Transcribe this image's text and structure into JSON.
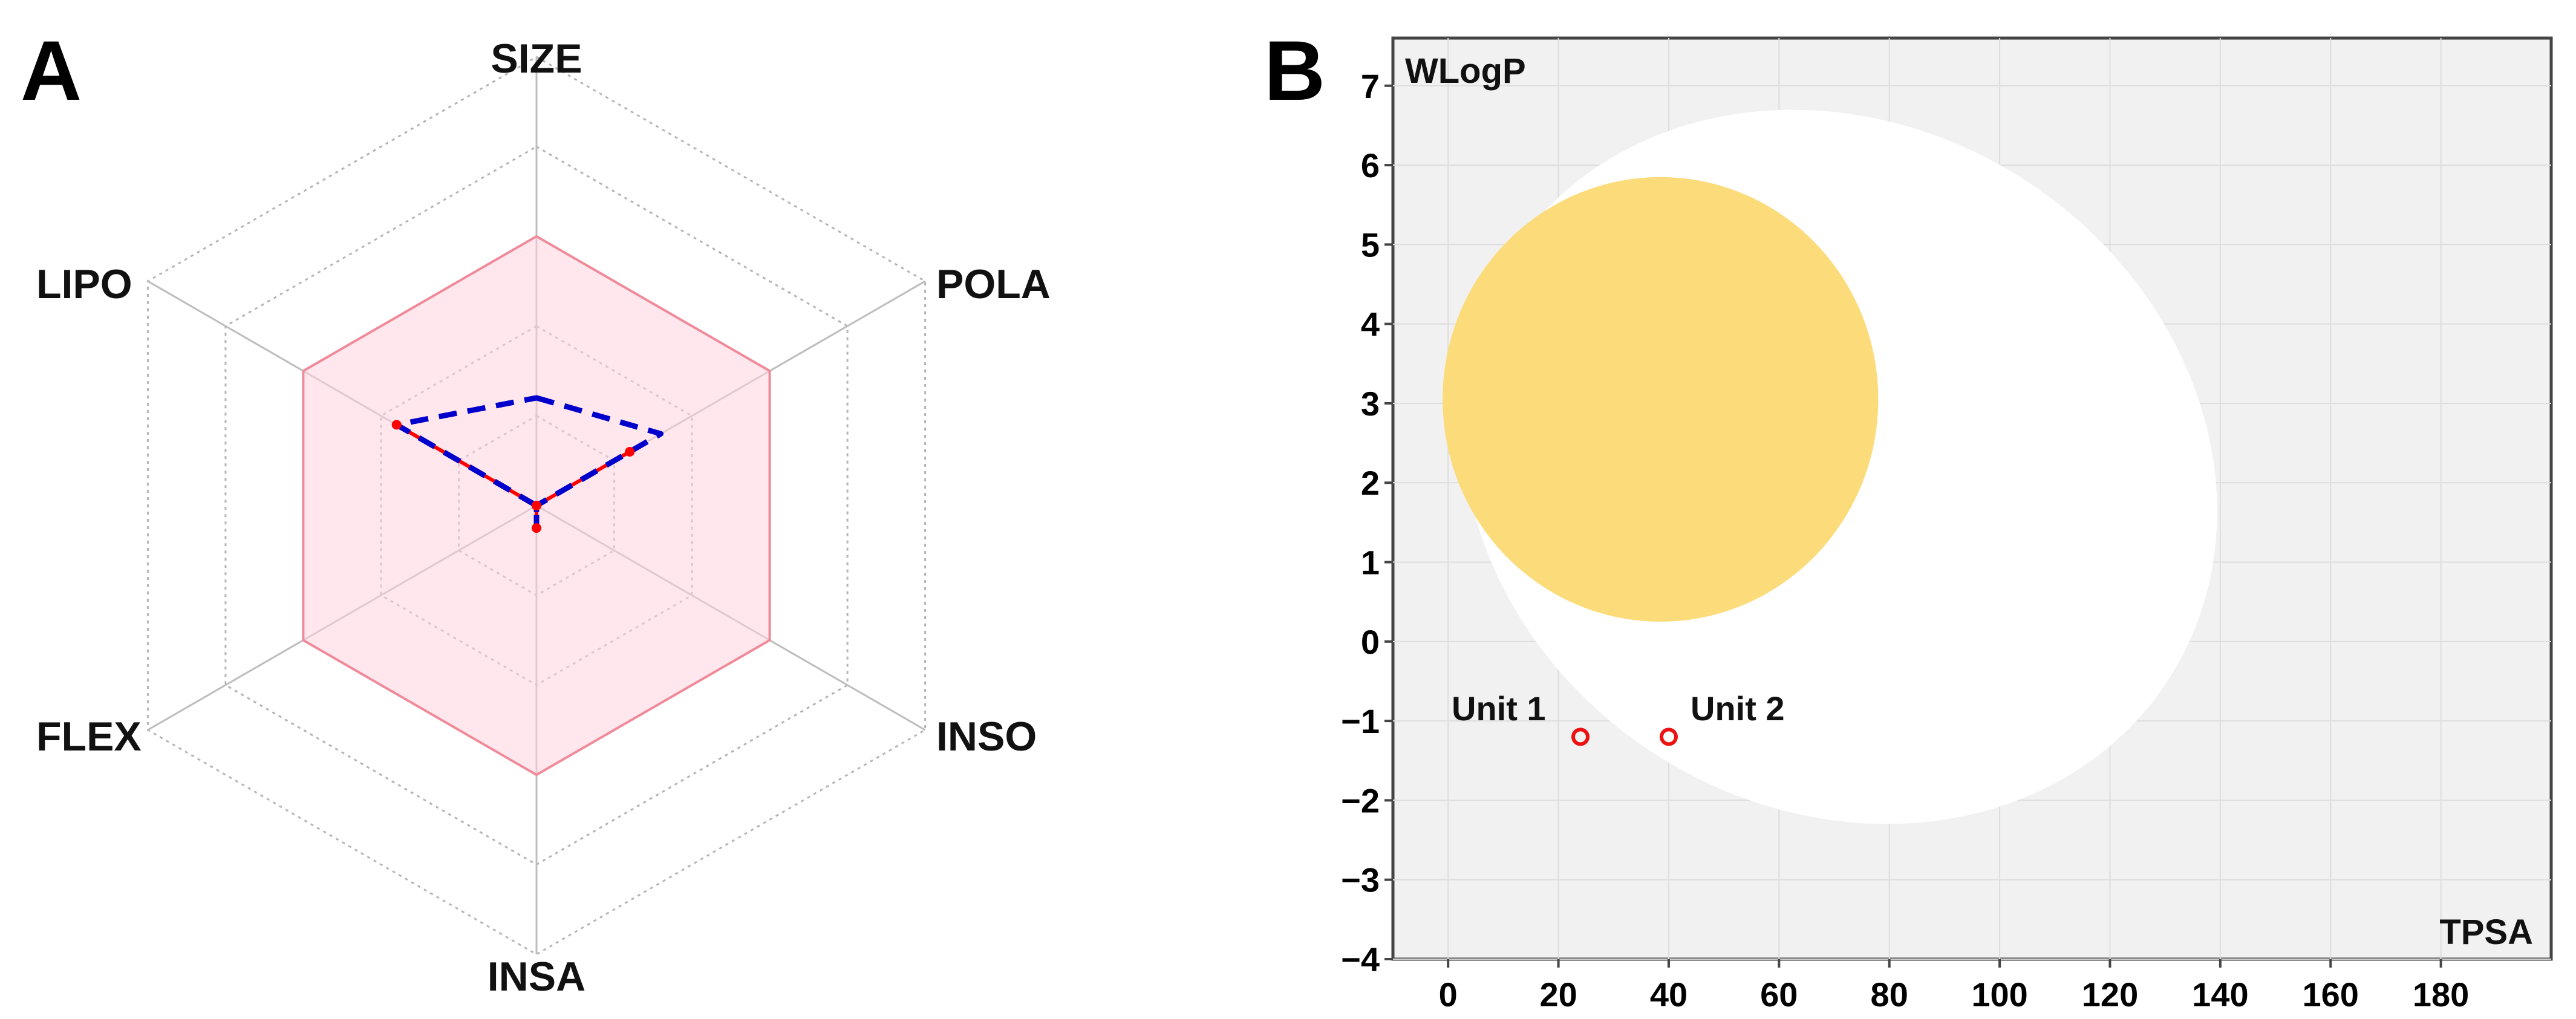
{
  "chart_data": [
    {
      "panel": "A",
      "type": "radar",
      "axes": [
        "SIZE",
        "POLA",
        "INSO",
        "INSA",
        "FLEX",
        "LIPO"
      ],
      "rings": 5,
      "optimal_range": [
        0.6,
        0.6,
        0.6,
        0.6,
        0.6,
        0.6
      ],
      "series": [
        {
          "name": "Unit 1",
          "style": "solid",
          "color": "#ff0000",
          "values": [
            0.0,
            0.24,
            0.0,
            0.05,
            0.0,
            0.36
          ]
        },
        {
          "name": "Unit 2",
          "style": "dashed",
          "color": "#0000cc",
          "values": [
            0.24,
            0.32,
            0.0,
            0.05,
            0.0,
            0.36
          ]
        }
      ]
    },
    {
      "panel": "B",
      "type": "scatter",
      "xlabel": "TPSA",
      "ylabel": "WLogP",
      "xlim": [
        -10,
        200
      ],
      "ylim": [
        -4,
        7.6
      ],
      "xticks": [
        0,
        20,
        40,
        60,
        80,
        100,
        120,
        140,
        160,
        180
      ],
      "yticks": [
        7,
        6,
        5,
        4,
        3,
        2,
        1,
        0,
        -1,
        -2,
        -3,
        -4
      ],
      "ytick_labels": [
        "7",
        "6",
        "5",
        "4",
        "3",
        "2",
        "1",
        "0",
        "−1",
        "−2",
        "−3",
        "−4"
      ],
      "regions": [
        {
          "name": "white",
          "color": "#ffffff",
          "cx": 71,
          "cy": 2.2,
          "rx": 71,
          "ry": 4.3,
          "rotate_deg": 33
        },
        {
          "name": "yolk",
          "color": "#fcdc7a",
          "cx": 38.5,
          "cy": 3.05,
          "rx": 39.5,
          "ry": 2.8,
          "rotate_deg": 0
        }
      ],
      "points": [
        {
          "label": "Unit 1",
          "x": 24,
          "y": -1.2
        },
        {
          "label": "Unit 2",
          "x": 40,
          "y": -1.2
        }
      ],
      "background": "#f1f1f1",
      "grid": true
    }
  ]
}
